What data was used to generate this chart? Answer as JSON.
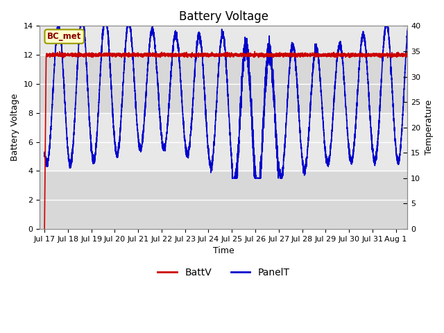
{
  "title": "Battery Voltage",
  "xlabel": "Time",
  "ylabel_left": "Battery Voltage",
  "ylabel_right": "Temperature",
  "legend_label": "BC_met",
  "series": {
    "BattV": {
      "color": "#cc0000",
      "linewidth": 1.2
    },
    "PanelT": {
      "color": "#0000cc",
      "linewidth": 1.2
    }
  },
  "xlim_days": [
    -0.2,
    15.5
  ],
  "ylim_left": [
    0,
    14
  ],
  "ylim_right": [
    0,
    40
  ],
  "yticks_left": [
    0,
    2,
    4,
    6,
    8,
    10,
    12,
    14
  ],
  "yticks_right": [
    0,
    5,
    10,
    15,
    20,
    25,
    30,
    35,
    40
  ],
  "bg_bands": [
    {
      "ymin": 0,
      "ymax": 4,
      "color": "#d8d8d8"
    },
    {
      "ymin": 4,
      "ymax": 8,
      "color": "#e8e8e8"
    },
    {
      "ymin": 8,
      "ymax": 12,
      "color": "#d8d8d8"
    },
    {
      "ymin": 12,
      "ymax": 14,
      "color": "#e8e8e8"
    }
  ],
  "grid_color": "#ffffff",
  "title_fontsize": 12,
  "axis_fontsize": 9,
  "tick_fontsize": 8,
  "legend_box_color": "#ffffcc",
  "legend_box_edgecolor": "#999900",
  "legend_text_color": "#880000",
  "xtick_days": [
    0,
    1,
    2,
    3,
    4,
    5,
    6,
    7,
    8,
    9,
    10,
    11,
    12,
    13,
    14,
    15
  ],
  "xtick_labels": [
    "Jul 17",
    "Jul 18",
    "Jul 19",
    "Jul 20",
    "Jul 21",
    "Jul 22",
    "Jul 23",
    "Jul 24",
    "Jul 25",
    "Jul 26",
    "Jul 27",
    "Jul 28",
    "Jul 29",
    "Jul 30",
    "Jul 31",
    "Aug 1"
  ]
}
